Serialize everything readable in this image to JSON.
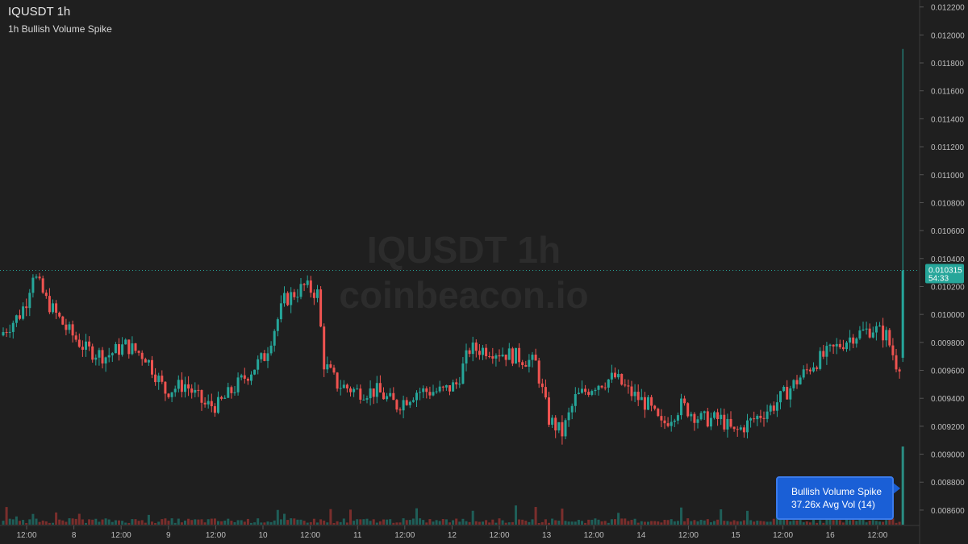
{
  "header": {
    "title": "IQUSDT 1h",
    "subtitle": "1h Bullish Volume Spike"
  },
  "watermark": {
    "line1": "IQUSDT 1h",
    "line2": "coinbeacon.io"
  },
  "price_label": {
    "price": "0.010315",
    "countdown": "54:33"
  },
  "callout": {
    "line1": "Bullish Volume Spike",
    "line2": "37.26x Avg Vol (14)"
  },
  "colors": {
    "background": "#1f1f1f",
    "up": "#26a69a",
    "down": "#ef5350",
    "callout": "#1a5fd6"
  },
  "chart_data": {
    "type": "candlestick",
    "y_axis": {
      "ticks": [
        "0.008600",
        "0.008800",
        "0.009000",
        "0.009200",
        "0.009400",
        "0.009600",
        "0.009800",
        "0.010000",
        "0.010200",
        "0.010400",
        "0.010600",
        "0.010800",
        "0.011000",
        "0.011200",
        "0.011400",
        "0.011600",
        "0.011800",
        "0.012000",
        "0.012200"
      ],
      "range": [
        0.00849,
        0.01225
      ]
    },
    "x_axis": {
      "ticks": [
        "12:00",
        "8",
        "12:00",
        "9",
        "12:00",
        "10",
        "12:00",
        "11",
        "12:00",
        "12",
        "12:00",
        "13",
        "12:00",
        "14",
        "12:00",
        "15",
        "12:00",
        "16",
        "12:00"
      ]
    },
    "anchors": [
      [
        0,
        0.00985
      ],
      [
        6,
        0.01
      ],
      [
        8,
        0.0101
      ],
      [
        10,
        0.0103
      ],
      [
        14,
        0.0101
      ],
      [
        20,
        0.0099
      ],
      [
        26,
        0.00975
      ],
      [
        32,
        0.0097
      ],
      [
        38,
        0.00978
      ],
      [
        44,
        0.0097
      ],
      [
        50,
        0.00945
      ],
      [
        56,
        0.0095
      ],
      [
        62,
        0.00935
      ],
      [
        66,
        0.00935
      ],
      [
        72,
        0.0095
      ],
      [
        80,
        0.0097
      ],
      [
        86,
        0.0101
      ],
      [
        92,
        0.0102
      ],
      [
        96,
        0.01015
      ],
      [
        98,
        0.00965
      ],
      [
        102,
        0.0095
      ],
      [
        108,
        0.00945
      ],
      [
        114,
        0.00945
      ],
      [
        120,
        0.00935
      ],
      [
        126,
        0.00945
      ],
      [
        134,
        0.00945
      ],
      [
        138,
        0.0095
      ],
      [
        142,
        0.00975
      ],
      [
        148,
        0.00975
      ],
      [
        156,
        0.0097
      ],
      [
        162,
        0.00965
      ],
      [
        166,
        0.00925
      ],
      [
        170,
        0.00915
      ],
      [
        174,
        0.0094
      ],
      [
        180,
        0.0095
      ],
      [
        186,
        0.00955
      ],
      [
        190,
        0.00945
      ],
      [
        196,
        0.00935
      ],
      [
        200,
        0.0092
      ],
      [
        206,
        0.00935
      ],
      [
        212,
        0.00925
      ],
      [
        218,
        0.00925
      ],
      [
        222,
        0.00915
      ],
      [
        228,
        0.00925
      ],
      [
        234,
        0.00935
      ],
      [
        240,
        0.0095
      ],
      [
        246,
        0.00965
      ],
      [
        252,
        0.00975
      ],
      [
        258,
        0.00985
      ],
      [
        264,
        0.0099
      ],
      [
        268,
        0.00985
      ],
      [
        271,
        0.00965
      ]
    ],
    "last_candle": {
      "open": 0.00969,
      "high": 0.0119,
      "low": 0.00966,
      "close": 0.010315,
      "direction": "up"
    },
    "volume": {
      "typical": "low",
      "spike_ratio": 37.26
    }
  }
}
